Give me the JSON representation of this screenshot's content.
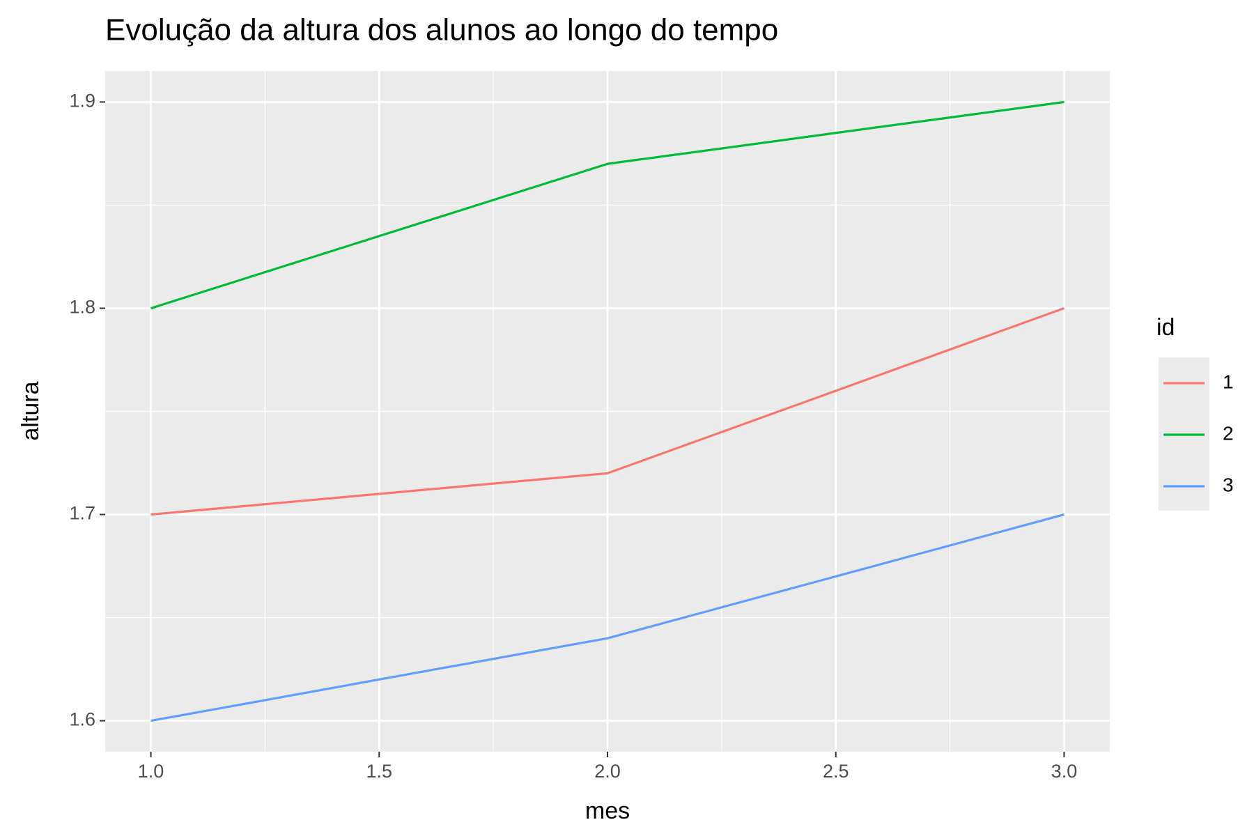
{
  "chart_data": {
    "type": "line",
    "title": "Evolução da altura dos alunos ao longo do tempo",
    "x_label": "mes",
    "y_label": "altura",
    "legend_title": "id",
    "x": [
      1,
      2,
      3
    ],
    "series": [
      {
        "name": "1",
        "color": "#F8766D",
        "values": [
          1.7,
          1.72,
          1.8
        ]
      },
      {
        "name": "2",
        "color": "#00BA38",
        "values": [
          1.8,
          1.87,
          1.9
        ]
      },
      {
        "name": "3",
        "color": "#619CFF",
        "values": [
          1.6,
          1.64,
          1.7
        ]
      }
    ],
    "xlim": [
      0.9,
      3.1
    ],
    "xticks": [
      {
        "value": 1,
        "label": "1.0"
      },
      1.5,
      {
        "value": 2,
        "label": "2.0"
      },
      2.5,
      {
        "value": 3,
        "label": "3.0"
      }
    ],
    "ylim": [
      1.585,
      1.915
    ],
    "yticks": [
      1.6,
      1.7,
      1.8,
      1.9
    ],
    "grid": true
  }
}
